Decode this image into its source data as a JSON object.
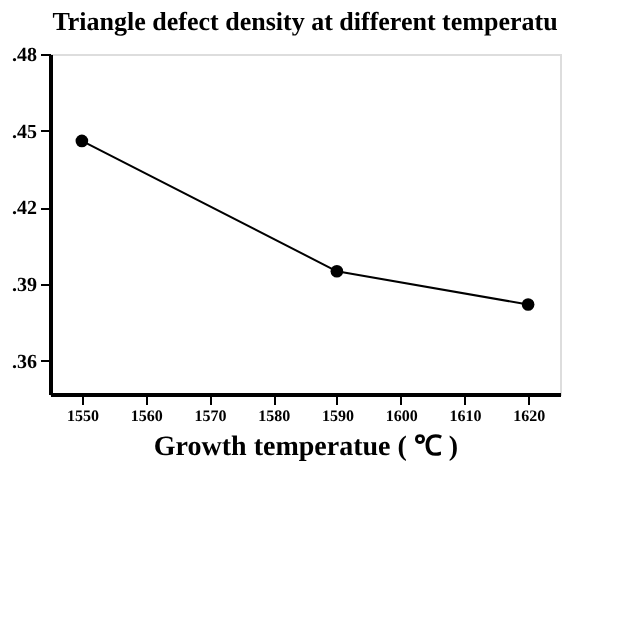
{
  "chart_data": {
    "type": "line",
    "title": "Triangle defect density at different temperatu",
    "xlabel": "Growth temperatue ( ℃ )",
    "x": [
      1550,
      1590,
      1620
    ],
    "series": [
      {
        "color": "#000000",
        "values": [
          0.446,
          0.395,
          0.382
        ]
      }
    ],
    "xlim": [
      1545,
      1625
    ],
    "xticks": [
      1550,
      1560,
      1570,
      1580,
      1590,
      1600,
      1610,
      1620
    ],
    "ylim": [
      0.347,
      0.48
    ],
    "yticks": [
      {
        "value": 0.36,
        "label": ".36"
      },
      {
        "value": 0.39,
        "label": ".39"
      },
      {
        "value": 0.42,
        "label": ".42"
      },
      {
        "value": 0.45,
        "label": ".45"
      },
      {
        "value": 0.48,
        "label": ".48"
      }
    ],
    "marker": "circle",
    "line_style": "solid",
    "grid": false
  }
}
